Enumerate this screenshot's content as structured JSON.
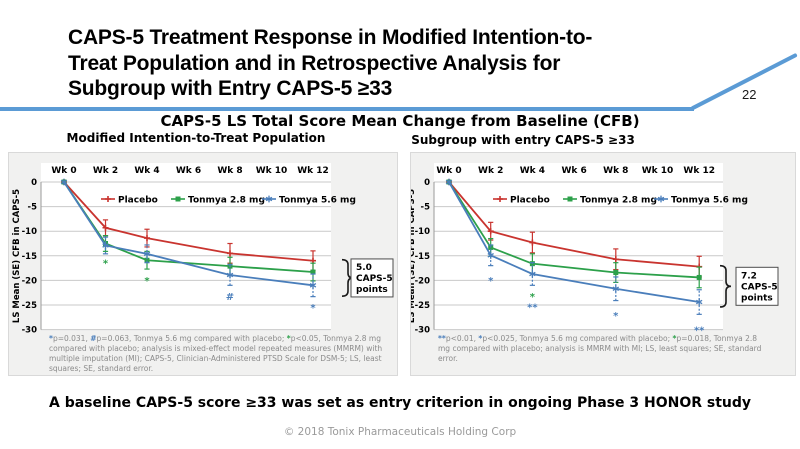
{
  "slide": {
    "title_lines": [
      "CAPS-5 Treatment Response in Modified Intention-to-",
      "Treat Population and in Retrospective Analysis for",
      "Subgroup with Entry CAPS-5 ≥33"
    ],
    "page_number": "22",
    "subtitle": "CAPS-5 LS Total Score Mean Change from Baseline (CFB)",
    "bottom_statement": "A baseline CAPS-5 score ≥33 was set as entry criterion in ongoing Phase 3 HONOR study",
    "copyright": "© 2018 Tonix Pharmaceuticals Holding Corp",
    "accent_color": "#5b9bd5"
  },
  "chart_data": [
    {
      "type": "line",
      "title": "Modified Intention-to-Treat Population",
      "x_tick_labels": [
        "Wk 0",
        "Wk 2",
        "Wk 4",
        "Wk 6",
        "Wk 8",
        "Wk 10",
        "Wk 12"
      ],
      "measured_weeks": [
        0,
        2,
        4,
        8,
        12
      ],
      "ylabel": "LS Mean (SE) CFB in CAPS-5",
      "ylim": [
        -30,
        0
      ],
      "yticks": [
        0,
        -5,
        -10,
        -15,
        -20,
        -25,
        -30
      ],
      "grid": true,
      "legend_position": "top-inside",
      "series": [
        {
          "name": "Placebo",
          "color": "#c9342f",
          "marker": "plus",
          "values": [
            0,
            -9.3,
            -11.4,
            -14.5,
            -16.0
          ],
          "se": [
            0,
            1.6,
            1.8,
            2.0,
            2.0
          ]
        },
        {
          "name": "Tonmya 2.8 mg",
          "color": "#2ca04a",
          "marker": "square",
          "values": [
            0,
            -12.5,
            -15.9,
            -17.1,
            -18.3
          ],
          "se": [
            0,
            1.6,
            1.8,
            1.8,
            1.8
          ]
        },
        {
          "name": "Tonmya 5.6 mg",
          "color": "#4a7ebb",
          "marker": "star",
          "values": [
            0,
            -12.9,
            -14.6,
            -18.9,
            -21.0
          ],
          "se": [
            0,
            1.7,
            1.8,
            2.1,
            2.3
          ]
        }
      ],
      "significance_markers": [
        {
          "symbol": "*",
          "color": "green",
          "week": 2,
          "value": -16.0
        },
        {
          "symbol": "*",
          "color": "green",
          "week": 4,
          "value": -19.5
        },
        {
          "symbol": "#",
          "color": "blue",
          "week": 8,
          "value": -22.8
        },
        {
          "symbol": "*",
          "color": "blue",
          "week": 12,
          "value": -25.0
        }
      ],
      "difference_callout": {
        "label_lines": [
          "5.0",
          "CAPS-5",
          "points"
        ],
        "from_value": -15.8,
        "to_value": -23.2
      },
      "footnote_segments": [
        {
          "text": "*",
          "color": "blue"
        },
        {
          "text": "p=0.031, ",
          "color": null
        },
        {
          "text": "#",
          "color": "blue"
        },
        {
          "text": "p=0.063, Tonmya 5.6 mg compared with placebo; ",
          "color": null
        },
        {
          "text": "*",
          "color": "green"
        },
        {
          "text": "p<0.05, Tonmya 2.8 mg compared with placebo; analysis is mixed-effect model repeated measures (MMRM) with multiple imputation (MI); CAPS-5, Clinician-Administered PTSD Scale for DSM-5; LS, least squares; SE, standard error.",
          "color": null
        }
      ]
    },
    {
      "type": "line",
      "title": "Subgroup with entry CAPS-5 ≥33",
      "x_tick_labels": [
        "Wk 0",
        "Wk 2",
        "Wk 4",
        "Wk 6",
        "Wk 8",
        "Wk 10",
        "Wk 12"
      ],
      "measured_weeks": [
        0,
        2,
        4,
        8,
        12
      ],
      "ylabel": "LS Mean (SE) CFB in CAPS-5",
      "ylim": [
        -30,
        0
      ],
      "yticks": [
        0,
        -5,
        -10,
        -15,
        -20,
        -25,
        -30
      ],
      "grid": true,
      "legend_position": "top-inside",
      "series": [
        {
          "name": "Placebo",
          "color": "#c9342f",
          "marker": "plus",
          "values": [
            0,
            -10.0,
            -12.3,
            -15.7,
            -17.2
          ],
          "se": [
            0,
            1.8,
            2.1,
            2.1,
            2.1
          ]
        },
        {
          "name": "Tonmya 2.8 mg",
          "color": "#2ca04a",
          "marker": "square",
          "values": [
            0,
            -13.3,
            -16.6,
            -18.4,
            -19.4
          ],
          "se": [
            0,
            1.8,
            2.0,
            2.0,
            2.1
          ]
        },
        {
          "name": "Tonmya 5.6 mg",
          "color": "#4a7ebb",
          "marker": "star",
          "values": [
            0,
            -14.9,
            -18.7,
            -21.7,
            -24.4
          ],
          "se": [
            0,
            2.1,
            2.3,
            2.4,
            2.5
          ]
        }
      ],
      "significance_markers": [
        {
          "symbol": "*",
          "color": "blue",
          "week": 2,
          "value": -19.5
        },
        {
          "symbol": "*",
          "color": "green",
          "week": 4,
          "value": -22.8
        },
        {
          "symbol": "**",
          "color": "blue",
          "week": 4,
          "value": -24.9
        },
        {
          "symbol": "*",
          "color": "blue",
          "week": 8,
          "value": -26.6
        },
        {
          "symbol": "**",
          "color": "blue",
          "week": 12,
          "value": -29.6
        }
      ],
      "difference_callout": {
        "label_lines": [
          "7.2",
          "CAPS-5",
          "points"
        ],
        "from_value": -17.0,
        "to_value": -25.4
      },
      "footnote_segments": [
        {
          "text": "**",
          "color": "blue"
        },
        {
          "text": "p<0.01, ",
          "color": null
        },
        {
          "text": "*",
          "color": "blue"
        },
        {
          "text": "p<0.025, Tonmya 5.6 mg compared with placebo; ",
          "color": null
        },
        {
          "text": "*",
          "color": "green"
        },
        {
          "text": "p=0.018, Tonmya 2.8 mg compared with placebo; analysis is MMRM with MI; LS, least squares; SE, standard error.",
          "color": null
        }
      ]
    }
  ]
}
